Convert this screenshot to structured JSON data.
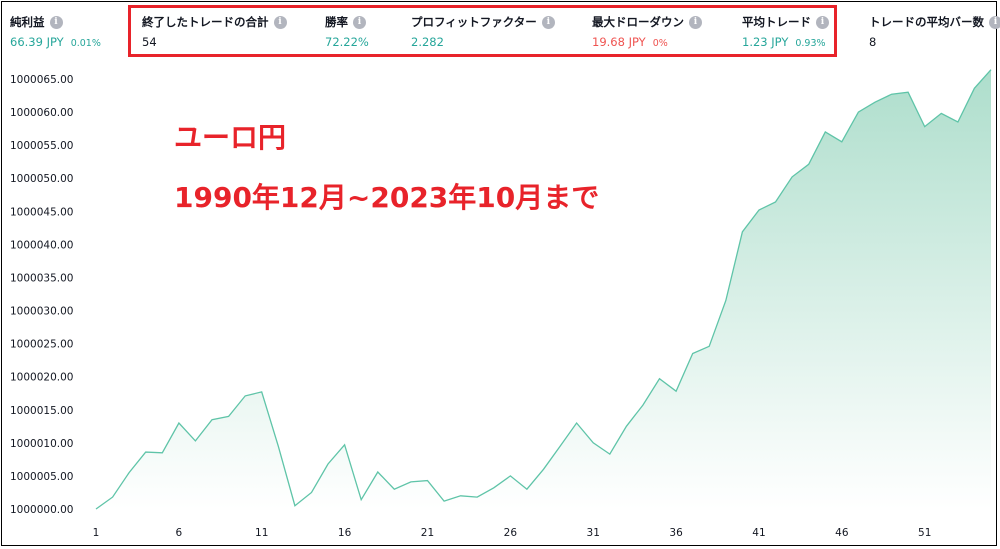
{
  "stats": [
    {
      "id": "net-profit",
      "label": "純利益",
      "value": "66.39 JPY",
      "pct": "0.01%",
      "tone": "pos"
    },
    {
      "id": "total-closed-trades",
      "label": "終了したトレードの合計",
      "value": "54",
      "pct": "",
      "tone": "neutral"
    },
    {
      "id": "win-rate",
      "label": "勝率",
      "value": "72.22%",
      "pct": "",
      "tone": "pos"
    },
    {
      "id": "profit-factor",
      "label": "プロフィットファクター",
      "value": "2.282",
      "pct": "",
      "tone": "pos"
    },
    {
      "id": "max-drawdown",
      "label": "最大ドローダウン",
      "value": "19.68 JPY",
      "pct": "0%",
      "tone": "neg"
    },
    {
      "id": "avg-trade",
      "label": "平均トレード",
      "value": "1.23 JPY",
      "pct": "0.93%",
      "tone": "pos"
    },
    {
      "id": "avg-bars",
      "label": "トレードの平均バー数",
      "value": "8",
      "pct": "",
      "tone": "neutral"
    }
  ],
  "info_icon_glyph": "i",
  "annotation": {
    "line1": "ユーロ円",
    "line2": "1990年12月~2023年10月まで"
  },
  "colors": {
    "line": "#5fc4a8",
    "fill_top": "#a9dcc9",
    "fill_bottom": "#ffffff",
    "annotation": "#e8232a",
    "positive": "#26a69a",
    "negative": "#ef5350"
  },
  "chart_data": {
    "type": "area",
    "title": "",
    "xlabel": "",
    "ylabel": "",
    "x_ticks": [
      1,
      6,
      11,
      16,
      21,
      26,
      31,
      36,
      41,
      46,
      51
    ],
    "y_ticks": [
      1000000.0,
      1000005.0,
      1000010.0,
      1000015.0,
      1000020.0,
      1000025.0,
      1000030.0,
      1000035.0,
      1000040.0,
      1000045.0,
      1000050.0,
      1000055.0,
      1000060.0,
      1000065.0
    ],
    "y_tick_labels": [
      "1000000.00",
      "1000005.00",
      "1000010.00",
      "1000015.00",
      "1000020.00",
      "1000025.00",
      "1000030.00",
      "1000035.00",
      "1000040.00",
      "1000045.00",
      "1000050.00",
      "1000055.00",
      "1000060.00",
      "1000065.00"
    ],
    "xlim": [
      1,
      55
    ],
    "ylim": [
      1000000.0,
      1000065.0
    ],
    "grid": false,
    "x": [
      1,
      2,
      3,
      4,
      5,
      6,
      7,
      8,
      9,
      10,
      11,
      12,
      13,
      14,
      15,
      16,
      17,
      18,
      19,
      20,
      21,
      22,
      23,
      24,
      25,
      26,
      27,
      28,
      29,
      30,
      31,
      32,
      33,
      34,
      35,
      36,
      37,
      38,
      39,
      40,
      41,
      42,
      43,
      44,
      45,
      46,
      47,
      48,
      49,
      50,
      51,
      52,
      53,
      54,
      55
    ],
    "y": [
      1000000.0,
      1000001.8,
      1000005.5,
      1000008.6,
      1000008.5,
      1000013.0,
      1000010.3,
      1000013.5,
      1000014.0,
      1000017.1,
      1000017.7,
      1000009.5,
      1000000.5,
      1000002.5,
      1000006.8,
      1000009.7,
      1000001.4,
      1000005.6,
      1000003.0,
      1000004.1,
      1000004.3,
      1000001.2,
      1000002.0,
      1000001.8,
      1000003.2,
      1000005.0,
      1000003.0,
      1000006.0,
      1000009.5,
      1000013.0,
      1000010.0,
      1000008.3,
      1000012.5,
      1000015.7,
      1000019.7,
      1000017.8,
      1000023.5,
      1000024.6,
      1000031.5,
      1000041.9,
      1000045.2,
      1000046.4,
      1000050.2,
      1000052.1,
      1000057.0,
      1000055.5,
      1000060.0,
      1000061.5,
      1000062.7,
      1000063.0,
      1000057.8,
      1000059.8,
      1000058.5,
      1000063.6,
      1000066.4
    ]
  }
}
